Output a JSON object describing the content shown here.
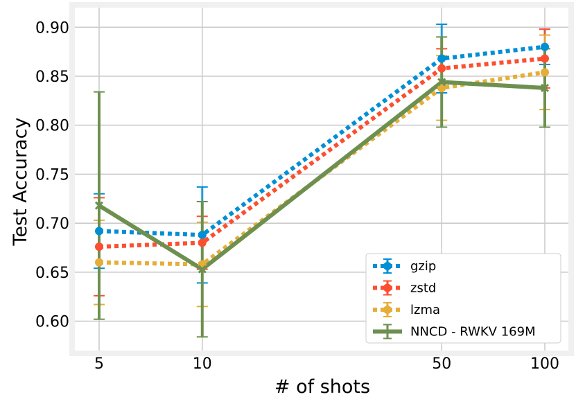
{
  "chart_data": {
    "type": "line",
    "title": "",
    "xlabel": "# of shots",
    "ylabel": "Test Accuracy",
    "x": [
      5,
      10,
      50,
      100
    ],
    "x_tick_labels": [
      "5",
      "10",
      "50",
      "100"
    ],
    "y_ticks": [
      0.6,
      0.65,
      0.7,
      0.75,
      0.8,
      0.85,
      0.9
    ],
    "y_tick_labels": [
      "0.60",
      "0.65",
      "0.70",
      "0.75",
      "0.80",
      "0.85",
      "0.90"
    ],
    "ylim": [
      0.57,
      0.92
    ],
    "grid": true,
    "legend_position": "bottom-right",
    "series": [
      {
        "name": "gzip",
        "color": "#008fd5",
        "style": "dotted",
        "marker": "circle",
        "values": [
          0.692,
          0.688,
          0.868,
          0.88
        ],
        "errors": [
          0.038,
          0.049,
          0.035,
          0.018
        ]
      },
      {
        "name": "zstd",
        "color": "#fc4f30",
        "style": "dotted",
        "marker": "circle",
        "values": [
          0.676,
          0.68,
          0.858,
          0.868
        ],
        "errors": [
          0.05,
          0.027,
          0.02,
          0.03
        ]
      },
      {
        "name": "lzma",
        "color": "#e5ae38",
        "style": "dotted",
        "marker": "circle",
        "values": [
          0.66,
          0.658,
          0.838,
          0.854
        ],
        "errors": [
          0.043,
          0.043,
          0.033,
          0.038
        ]
      },
      {
        "name": "NNCD - RWKV 169M",
        "color": "#6d904f",
        "style": "solid",
        "marker": "x",
        "values": [
          0.718,
          0.653,
          0.844,
          0.838
        ],
        "errors": [
          0.116,
          0.069,
          0.046,
          0.04
        ]
      }
    ]
  }
}
